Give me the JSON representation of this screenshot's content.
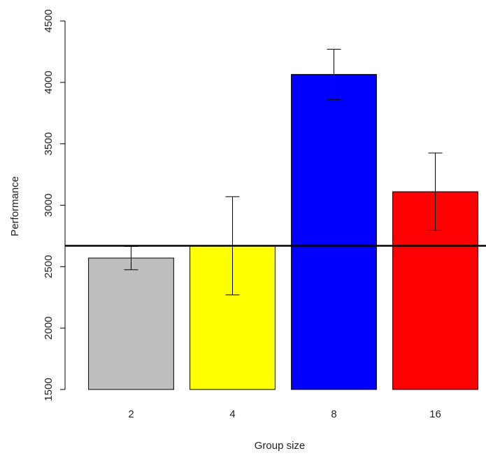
{
  "chart_data": {
    "type": "bar",
    "xlabel": "Group size",
    "ylabel": "Performance",
    "categories": [
      "2",
      "4",
      "8",
      "16"
    ],
    "values": [
      2570,
      2670,
      4065,
      3110
    ],
    "errors": [
      95,
      400,
      205,
      315
    ],
    "colors": [
      "#bebebe",
      "#ffff00",
      "#0000ff",
      "#ff0000"
    ],
    "hline": 2670,
    "ylim": [
      1500,
      4500
    ],
    "yticks": [
      1500,
      2000,
      2500,
      3000,
      3500,
      4000,
      4500
    ],
    "grid": false
  }
}
